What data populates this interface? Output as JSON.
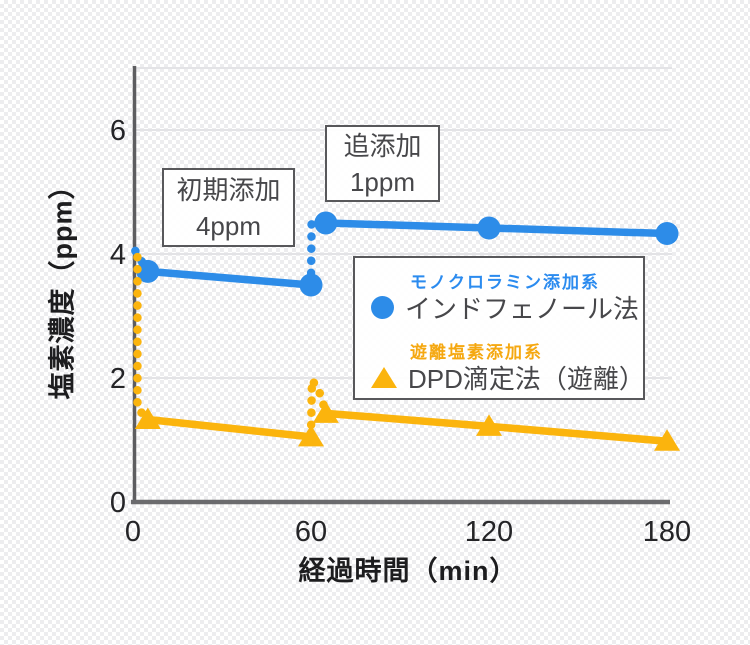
{
  "chart_data": {
    "type": "line",
    "title": "",
    "xlabel": "経過時間（min）",
    "ylabel": "塩素濃度（ppm）",
    "xlim": [
      0,
      181
    ],
    "ylim": [
      0,
      7
    ],
    "xticks": [
      0,
      60,
      120,
      180
    ],
    "yticks": [
      0,
      2,
      4,
      6
    ],
    "grid_levels": [
      2,
      4,
      6,
      7
    ],
    "grid_on": true,
    "legend_position": "center-right-box",
    "series": [
      {
        "name": "インドフェノール法",
        "group": "モノクロラミン添加系",
        "color": "#2d8ce8",
        "label_color": "#2b8bef",
        "marker": "circle",
        "line_style": "solid-with-dotted-transitions",
        "points": [
          [
            5,
            3.72
          ],
          [
            60,
            3.5
          ],
          [
            65,
            4.5
          ],
          [
            120,
            4.42
          ],
          [
            180,
            4.33
          ]
        ],
        "solid_segments": [
          [
            [
              5,
              3.72
            ],
            [
              60,
              3.5
            ]
          ],
          [
            [
              65,
              4.5
            ],
            [
              120,
              4.42
            ],
            [
              180,
              4.33
            ]
          ]
        ],
        "dotted_segments": [
          [
            [
              0.8,
              4.05
            ],
            [
              5,
              3.72
            ]
          ],
          [
            [
              60,
              3.5
            ],
            [
              60.2,
              4.55
            ],
            [
              65,
              4.5
            ]
          ]
        ]
      },
      {
        "name": "DPD滴定法（遊離）",
        "group": "遊離塩素添加系",
        "color": "#fbb40d",
        "label_color": "#f5a811",
        "marker": "triangle",
        "line_style": "solid-with-dotted-transitions",
        "points": [
          [
            5,
            1.33
          ],
          [
            60,
            1.05
          ],
          [
            65,
            1.43
          ],
          [
            120,
            1.22
          ],
          [
            180,
            0.98
          ]
        ],
        "solid_segments": [
          [
            [
              5,
              1.33
            ],
            [
              60,
              1.05
            ]
          ],
          [
            [
              65,
              1.43
            ],
            [
              120,
              1.22
            ],
            [
              180,
              0.98
            ]
          ]
        ],
        "dotted_segments": [
          [
            [
              1.5,
              3.95
            ],
            [
              1.5,
              1.5
            ],
            [
              5,
              1.35
            ]
          ],
          [
            [
              60,
              1.05
            ],
            [
              60.3,
              1.97
            ],
            [
              62.5,
              1.82
            ],
            [
              65,
              1.45
            ]
          ]
        ]
      }
    ],
    "annotations": [
      {
        "line1": "初期添加",
        "line2": "4ppm"
      },
      {
        "line1": "追添加",
        "line2": "1ppm"
      }
    ]
  },
  "colors": {
    "accent_blue": "#2d8ce8",
    "accent_amber": "#fbb40d",
    "axis": "#5d5d60",
    "grid": "#e3e3e6",
    "tick_text": "#242427",
    "body_text": "#47474a"
  }
}
